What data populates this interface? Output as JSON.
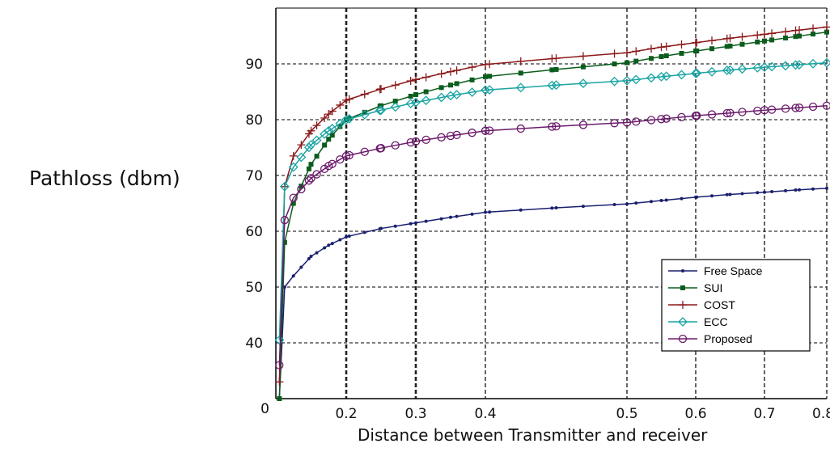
{
  "chart_data": {
    "type": "line",
    "title": "",
    "xlabel": "Distance between Transmitter and receiver",
    "ylabel": "Pathloss (dbm)",
    "legend_position": "bottom-right",
    "grid": true,
    "x_ticks": [
      {
        "value": 0.0,
        "label": "0"
      },
      {
        "value": 0.2,
        "label": "0.2"
      },
      {
        "value": 0.3,
        "label": "0.3"
      },
      {
        "value": 0.4,
        "label": "0.4"
      },
      {
        "value": 0.5,
        "label": "0.5"
      },
      {
        "value": 0.6,
        "label": "0.6"
      },
      {
        "value": 0.7,
        "label": "0.7"
      },
      {
        "value": 0.8,
        "label": "0.8"
      }
    ],
    "y_ticks": [
      {
        "value": 40,
        "label": "40"
      },
      {
        "value": 50,
        "label": "50"
      },
      {
        "value": 60,
        "label": "60"
      },
      {
        "value": 70,
        "label": "70"
      },
      {
        "value": 80,
        "label": "80"
      },
      {
        "value": 90,
        "label": "90"
      }
    ],
    "y_zero_label": "0",
    "x": [
      0.01,
      0.025,
      0.05,
      0.1,
      0.15,
      0.2,
      0.25,
      0.3,
      0.35,
      0.4,
      0.45,
      0.5,
      0.55,
      0.6,
      0.65,
      0.7,
      0.75,
      0.8
    ],
    "series": [
      {
        "name": "Free Space",
        "color": "#1a1f6e",
        "marker": "dot",
        "values": [
          30,
          50,
          52,
          55.5,
          57.5,
          59,
          60.5,
          61.5,
          62.5,
          63.4,
          64.2,
          64.9,
          65.5,
          66.1,
          66.6,
          67.0,
          67.4,
          67.7
        ]
      },
      {
        "name": "SUI",
        "color": "#0b5d1e",
        "marker": "square",
        "values": [
          30,
          58,
          65,
          72,
          76.5,
          80,
          82.5,
          84.5,
          86.2,
          87.7,
          89.0,
          90.2,
          91.3,
          92.3,
          93.2,
          94.1,
          94.9,
          95.7
        ]
      },
      {
        "name": "COST",
        "color": "#8b1a1a",
        "marker": "plus",
        "values": [
          33,
          68,
          73.5,
          78,
          81,
          83.5,
          85.5,
          87.2,
          88.6,
          89.9,
          91.0,
          92.0,
          93.0,
          93.8,
          94.6,
          95.3,
          96.0,
          96.6
        ]
      },
      {
        "name": "ECC",
        "color": "#1aa3a3",
        "marker": "diamond",
        "values": [
          40.5,
          68,
          71.5,
          75.5,
          78,
          80,
          81.7,
          83.1,
          84.3,
          85.3,
          86.2,
          87.0,
          87.7,
          88.3,
          88.9,
          89.4,
          89.8,
          90.2
        ]
      },
      {
        "name": "Proposed",
        "color": "#6b1a6b",
        "marker": "circle",
        "values": [
          36,
          62,
          66,
          69.5,
          71.7,
          73.5,
          74.9,
          76.1,
          77.1,
          78.0,
          78.8,
          79.5,
          80.1,
          80.7,
          81.2,
          81.7,
          82.1,
          82.5
        ]
      }
    ]
  }
}
